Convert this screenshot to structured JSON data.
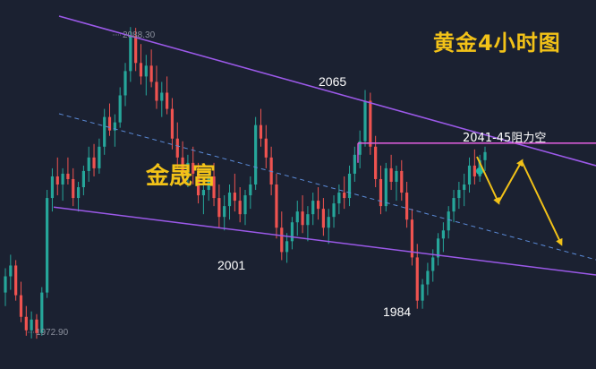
{
  "title": "黄金4小时图",
  "watermark": "金晟富",
  "colors": {
    "background": "#1b2131",
    "up": "#26a69a",
    "down": "#ef5350",
    "channel": "#9b59e8",
    "midline": "#5b8bd8",
    "resistance": "#d65bd6",
    "arrow": "#f2c218",
    "title": "#f2c218",
    "label": "#ffffff",
    "dim_label": "#8a8f9c"
  },
  "chart_data": {
    "type": "candlestick",
    "symbol_title": "黄金4小时图",
    "ylim": [
      1965,
      2095
    ],
    "price_labels": [
      {
        "text": "2088.30",
        "price": 2088.3,
        "kind": "high"
      },
      {
        "text": "1972.90",
        "price": 1972.9,
        "kind": "low"
      }
    ],
    "annotations": [
      {
        "text": "2065",
        "price": 2065,
        "kind": "swing-high"
      },
      {
        "text": "2001",
        "price": 2001,
        "kind": "swing-low"
      },
      {
        "text": "1984",
        "price": 1984,
        "kind": "swing-low"
      },
      {
        "text": "2041-45阻力空",
        "price": 2045,
        "kind": "resistance"
      }
    ],
    "channel": {
      "upper": "descending",
      "lower": "descending",
      "midline": "dashed"
    },
    "resistance_level": 2045,
    "forecast": "down-up-down",
    "candles": [
      [
        1990,
        1999,
        1985,
        1996
      ],
      [
        1996,
        2004,
        1991,
        2000
      ],
      [
        2000,
        2002,
        1987,
        1989
      ],
      [
        1989,
        1994,
        1979,
        1981
      ],
      [
        1981,
        1985,
        1974,
        1976
      ],
      [
        1976,
        1983,
        1973,
        1980
      ],
      [
        1980,
        1982,
        1972.9,
        1975
      ],
      [
        1975,
        1992,
        1974,
        1990
      ],
      [
        1990,
        2028,
        1988,
        2025
      ],
      [
        2025,
        2036,
        2020,
        2033
      ],
      [
        2033,
        2040,
        2026,
        2030
      ],
      [
        2030,
        2036,
        2024,
        2034
      ],
      [
        2034,
        2040,
        2030,
        2032
      ],
      [
        2032,
        2036,
        2022,
        2025
      ],
      [
        2025,
        2031,
        2020,
        2029
      ],
      [
        2029,
        2037,
        2026,
        2035
      ],
      [
        2035,
        2044,
        2031,
        2040
      ],
      [
        2040,
        2045,
        2033,
        2036
      ],
      [
        2036,
        2047,
        2034,
        2044
      ],
      [
        2044,
        2058,
        2041,
        2055
      ],
      [
        2055,
        2060,
        2048,
        2050
      ],
      [
        2050,
        2056,
        2044,
        2053
      ],
      [
        2053,
        2066,
        2051,
        2063
      ],
      [
        2063,
        2075,
        2059,
        2072
      ],
      [
        2072,
        2088.3,
        2068,
        2085
      ],
      [
        2085,
        2088,
        2072,
        2075
      ],
      [
        2075,
        2082,
        2067,
        2070
      ],
      [
        2070,
        2078,
        2063,
        2074
      ],
      [
        2074,
        2080,
        2066,
        2068
      ],
      [
        2068,
        2074,
        2058,
        2061
      ],
      [
        2061,
        2068,
        2055,
        2064
      ],
      [
        2064,
        2070,
        2056,
        2058
      ],
      [
        2058,
        2062,
        2043,
        2047
      ],
      [
        2047,
        2053,
        2036,
        2040
      ],
      [
        2040,
        2046,
        2030,
        2033
      ],
      [
        2033,
        2041,
        2029,
        2038
      ],
      [
        2038,
        2044,
        2030,
        2034
      ],
      [
        2034,
        2038,
        2023,
        2026
      ],
      [
        2026,
        2032,
        2019,
        2028
      ],
      [
        2028,
        2036,
        2024,
        2033
      ],
      [
        2033,
        2038,
        2022,
        2025
      ],
      [
        2025,
        2030,
        2014,
        2018
      ],
      [
        2018,
        2026,
        2013,
        2022
      ],
      [
        2022,
        2030,
        2017,
        2027
      ],
      [
        2027,
        2034,
        2020,
        2024
      ],
      [
        2024,
        2029,
        2016,
        2019
      ],
      [
        2019,
        2028,
        2015,
        2026
      ],
      [
        2026,
        2033,
        2021,
        2030
      ],
      [
        2030,
        2055,
        2028,
        2052
      ],
      [
        2052,
        2058,
        2044,
        2047
      ],
      [
        2047,
        2052,
        2036,
        2040
      ],
      [
        2040,
        2044,
        2026,
        2030
      ],
      [
        2030,
        2034,
        2010,
        2014
      ],
      [
        2014,
        2020,
        2002,
        2005
      ],
      [
        2005,
        2012,
        2001,
        2009
      ],
      [
        2009,
        2018,
        2006,
        2016
      ],
      [
        2016,
        2024,
        2011,
        2020
      ],
      [
        2020,
        2026,
        2012,
        2015
      ],
      [
        2015,
        2022,
        2009,
        2019
      ],
      [
        2019,
        2027,
        2015,
        2024
      ],
      [
        2024,
        2029,
        2017,
        2021
      ],
      [
        2021,
        2025,
        2011,
        2014
      ],
      [
        2014,
        2021,
        2008,
        2018
      ],
      [
        2018,
        2026,
        2014,
        2023
      ],
      [
        2023,
        2030,
        2019,
        2027
      ],
      [
        2027,
        2033,
        2021,
        2025
      ],
      [
        2025,
        2037,
        2022,
        2034
      ],
      [
        2034,
        2044,
        2031,
        2041
      ],
      [
        2041,
        2050,
        2036,
        2046
      ],
      [
        2046,
        2065,
        2044,
        2061
      ],
      [
        2061,
        2064,
        2041,
        2044
      ],
      [
        2044,
        2048,
        2029,
        2032
      ],
      [
        2032,
        2037,
        2019,
        2022
      ],
      [
        2022,
        2038,
        2020,
        2036
      ],
      [
        2036,
        2041,
        2028,
        2031
      ],
      [
        2031,
        2037,
        2024,
        2035
      ],
      [
        2035,
        2039,
        2024,
        2027
      ],
      [
        2027,
        2031,
        2014,
        2017
      ],
      [
        2017,
        2021,
        2000,
        2003
      ],
      [
        2003,
        2008,
        1984,
        1987
      ],
      [
        1987,
        1995,
        1984,
        1993
      ],
      [
        1993,
        2001,
        1989,
        1998
      ],
      [
        1998,
        2006,
        1994,
        2003
      ],
      [
        2003,
        2012,
        2000,
        2010
      ],
      [
        2010,
        2016,
        2005,
        2013
      ],
      [
        2013,
        2022,
        2010,
        2020
      ],
      [
        2020,
        2028,
        2016,
        2025
      ],
      [
        2025,
        2031,
        2021,
        2028
      ],
      [
        2028,
        2034,
        2022,
        2030
      ],
      [
        2030,
        2040,
        2027,
        2037
      ],
      [
        2037,
        2043,
        2030,
        2033
      ],
      [
        2033,
        2041,
        2031,
        2039
      ],
      [
        2039,
        2044,
        2035,
        2042
      ]
    ]
  }
}
